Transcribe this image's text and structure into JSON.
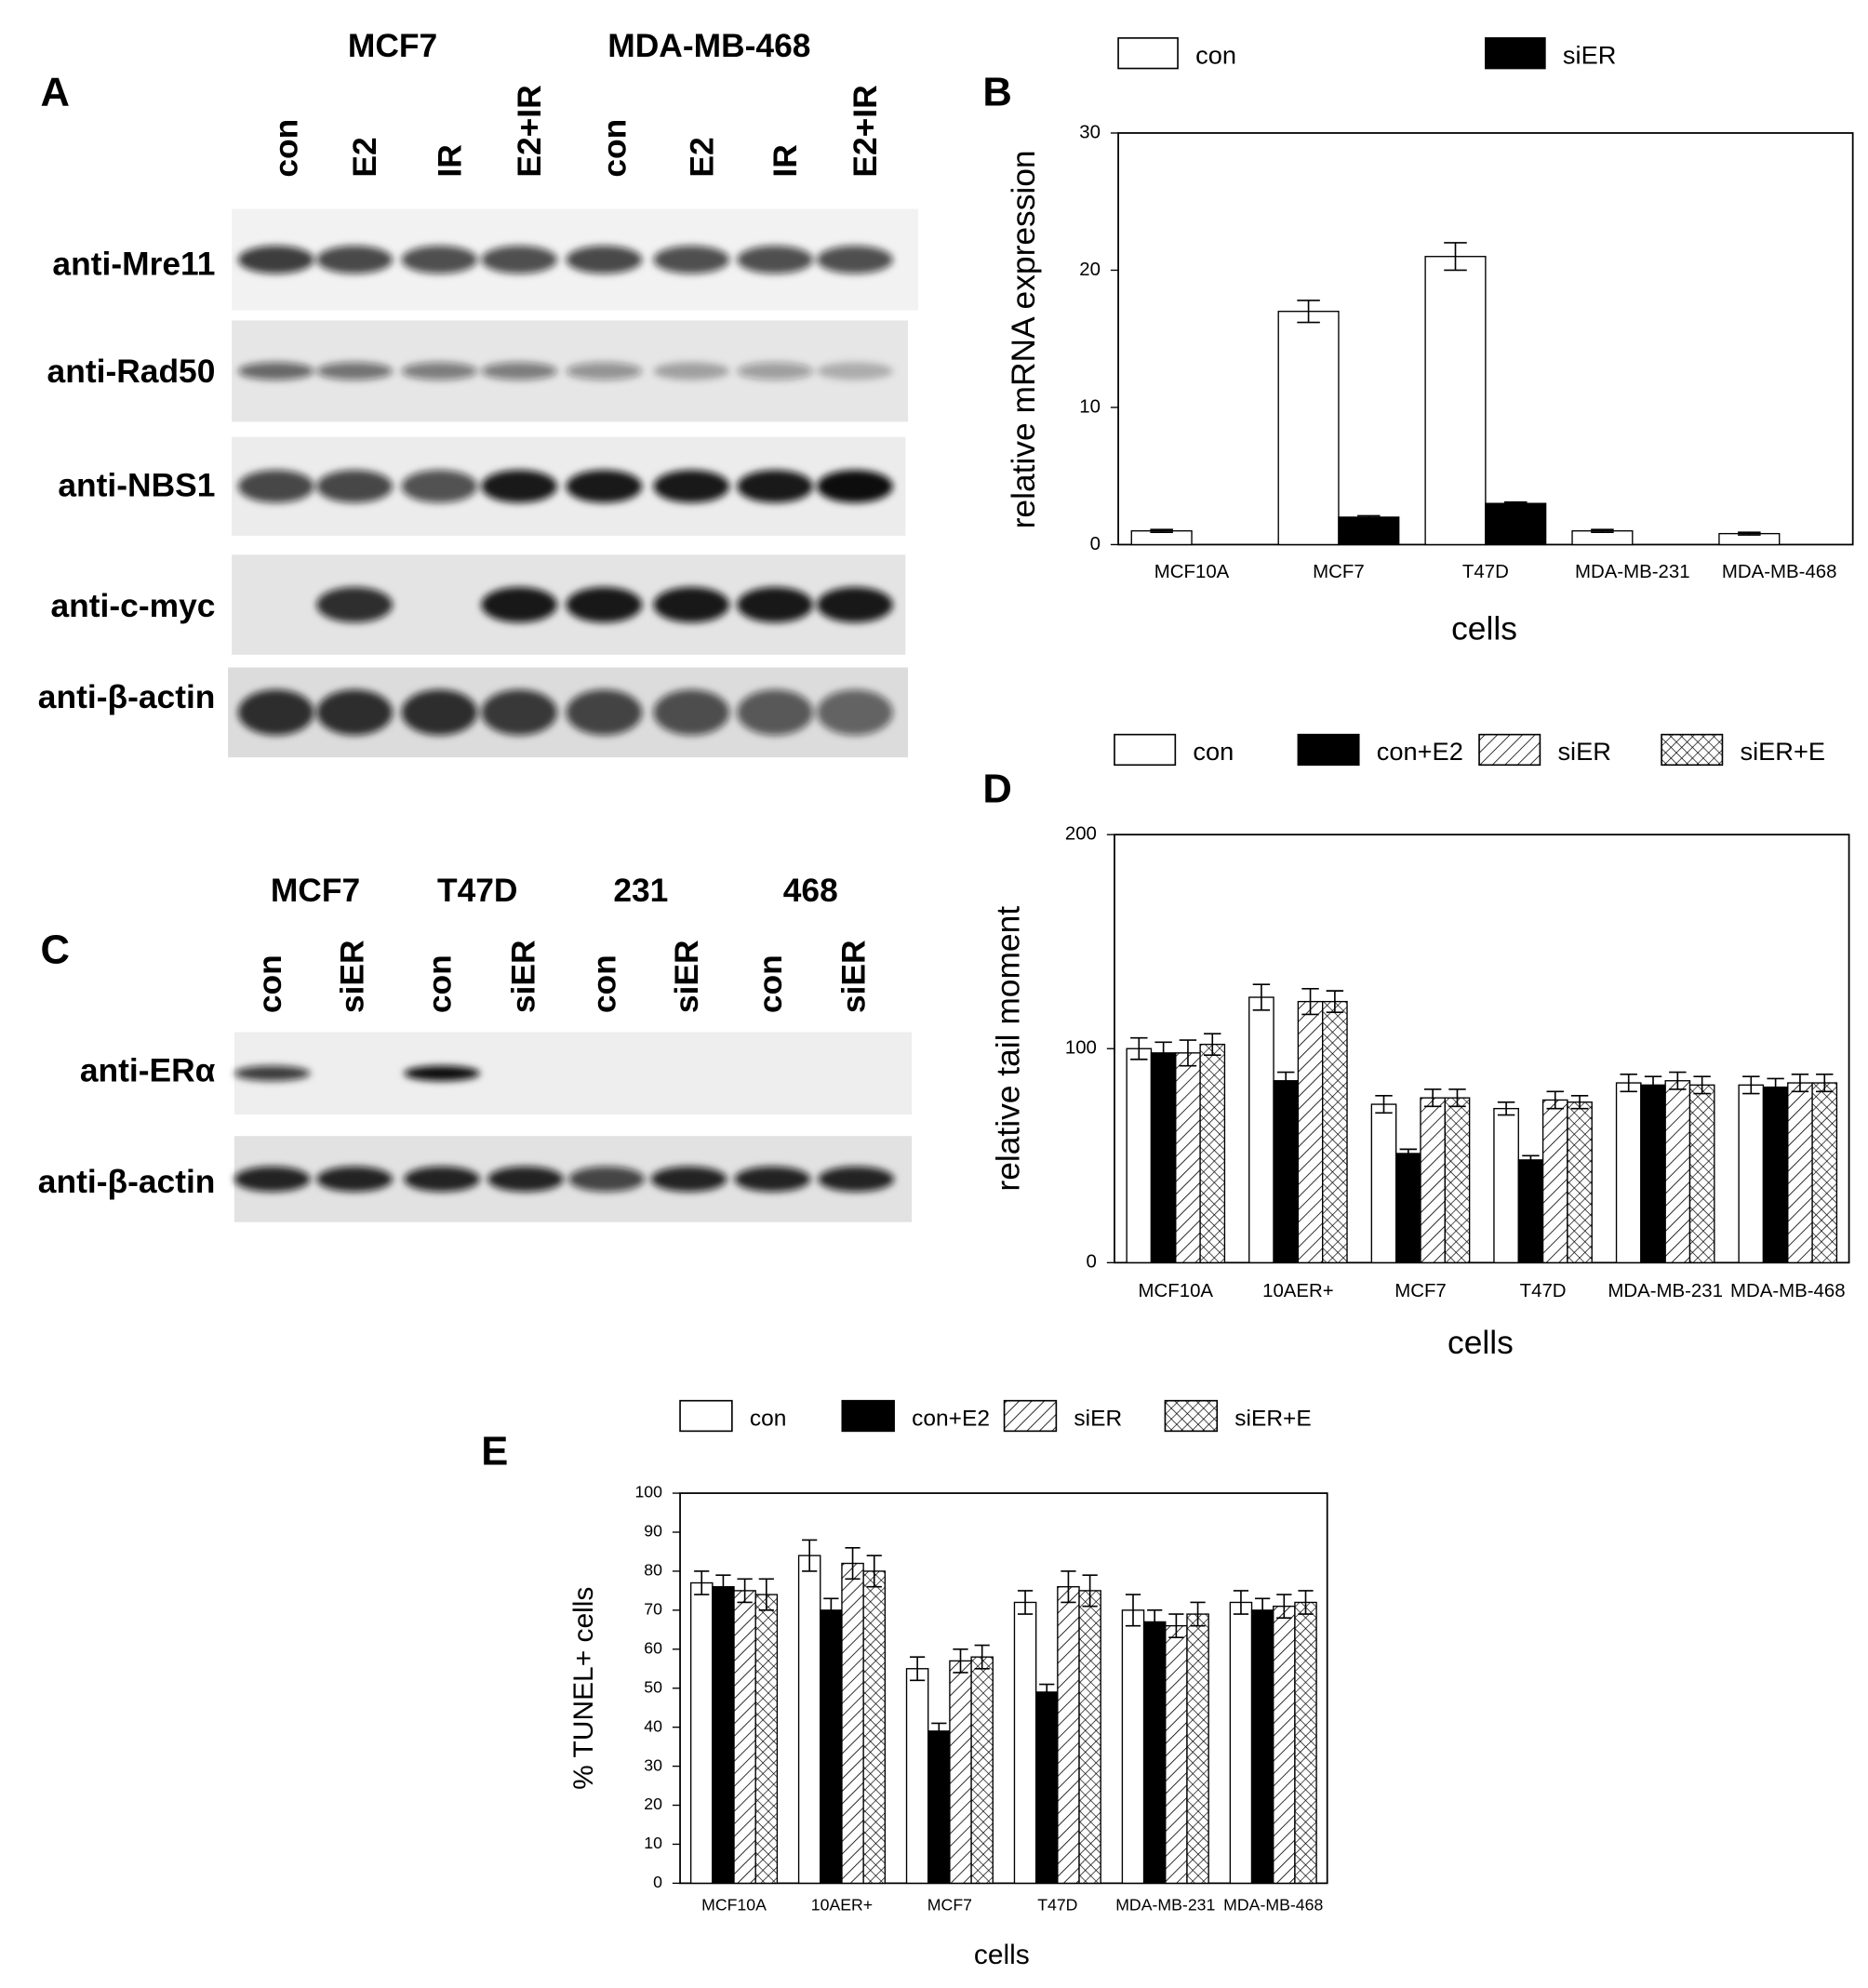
{
  "chart_data": [
    {
      "type": "bar",
      "label": "B",
      "ylabel": "relative mRNA expression",
      "xlabel": "cells",
      "categories": [
        "MCF10A",
        "MCF7",
        "T47D",
        "MDA-MB-231",
        "MDA-MB-468"
      ],
      "series": [
        {
          "name": "con",
          "color": "#ffffff",
          "values": [
            1,
            17,
            21,
            1,
            0.8
          ],
          "errors": [
            0.1,
            0.8,
            1,
            0.1,
            0.1
          ]
        },
        {
          "name": "siER",
          "color": "#000000",
          "values": [
            null,
            2,
            3,
            null,
            null
          ],
          "errors": [
            null,
            0.1,
            0.1,
            null,
            null
          ]
        }
      ],
      "ylim": [
        0,
        30
      ],
      "yticks": [
        0,
        10,
        20,
        30
      ]
    },
    {
      "type": "bar",
      "label": "D",
      "ylabel": "relative tail moment",
      "xlabel": "cells",
      "categories": [
        "MCF10A",
        "10AER+",
        "MCF7",
        "T47D",
        "MDA-MB-231",
        "MDA-MB-468"
      ],
      "series": [
        {
          "name": "con",
          "color": "#ffffff",
          "values": [
            100,
            124,
            74,
            72,
            84,
            83
          ],
          "errors": [
            5,
            6,
            4,
            3,
            4,
            4
          ]
        },
        {
          "name": "con+E2",
          "color": "#000000",
          "values": [
            98,
            85,
            51,
            48,
            83,
            82
          ],
          "errors": [
            5,
            4,
            2,
            2,
            4,
            4
          ]
        },
        {
          "name": "siER",
          "color": "#ffffff",
          "pattern": "hatch",
          "values": [
            98,
            122,
            77,
            76,
            85,
            84
          ],
          "errors": [
            6,
            6,
            4,
            4,
            4,
            4
          ]
        },
        {
          "name": "siER+E",
          "color": "#ffffff",
          "pattern": "crosshatch",
          "values": [
            102,
            122,
            77,
            75,
            83,
            84
          ],
          "errors": [
            5,
            5,
            4,
            3,
            4,
            4
          ]
        }
      ],
      "ylim": [
        0,
        200
      ],
      "yticks": [
        0,
        100,
        200
      ]
    },
    {
      "type": "bar",
      "label": "E",
      "ylabel": "% TUNEL+ cells",
      "xlabel": "cells",
      "categories": [
        "MCF10A",
        "10AER+",
        "MCF7",
        "T47D",
        "MDA-MB-231",
        "MDA-MB-468"
      ],
      "series": [
        {
          "name": "con",
          "color": "#ffffff",
          "values": [
            77,
            84,
            55,
            72,
            70,
            72
          ],
          "errors": [
            3,
            4,
            3,
            3,
            4,
            3
          ]
        },
        {
          "name": "con+E2",
          "color": "#000000",
          "values": [
            76,
            70,
            39,
            49,
            67,
            70
          ],
          "errors": [
            3,
            3,
            2,
            2,
            3,
            3
          ]
        },
        {
          "name": "siER",
          "color": "#ffffff",
          "pattern": "hatch",
          "values": [
            75,
            82,
            57,
            76,
            66,
            71
          ],
          "errors": [
            3,
            4,
            3,
            4,
            3,
            3
          ]
        },
        {
          "name": "siER+E",
          "color": "#ffffff",
          "pattern": "crosshatch",
          "values": [
            74,
            80,
            58,
            75,
            69,
            72
          ],
          "errors": [
            4,
            4,
            3,
            4,
            3,
            3
          ]
        }
      ],
      "ylim": [
        0,
        100
      ],
      "yticks": [
        0,
        10,
        20,
        30,
        40,
        50,
        60,
        70,
        80,
        90,
        100
      ]
    }
  ],
  "blots": [
    {
      "label": "A",
      "groups": [
        "MCF7",
        "MDA-MB-468"
      ],
      "lanes": [
        "con",
        "E2",
        "IR",
        "E2+IR",
        "con",
        "E2",
        "IR",
        "E2+IR"
      ],
      "rows": [
        "anti-Mre11",
        "anti-Rad50",
        "anti-NBS1",
        "anti-c-myc",
        "anti-β-actin"
      ]
    },
    {
      "label": "C",
      "groups": [
        "MCF7",
        "T47D",
        "231",
        "468"
      ],
      "lanes": [
        "con",
        "siER",
        "con",
        "siER",
        "con",
        "siER",
        "con",
        "siER"
      ],
      "rows": [
        "anti-ERα",
        "anti-β-actin"
      ]
    }
  ]
}
